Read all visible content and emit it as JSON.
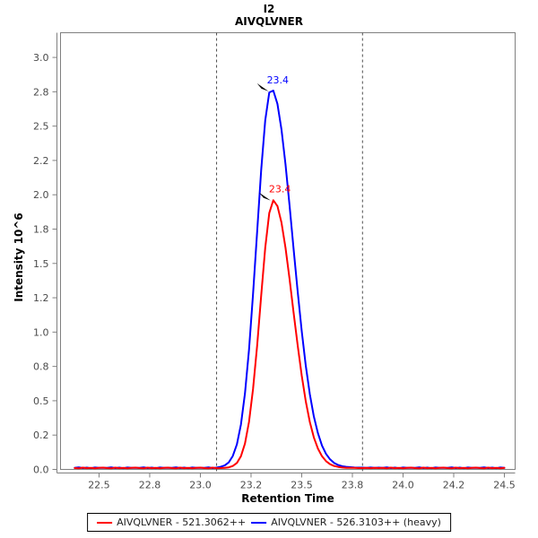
{
  "header": {
    "title": "I2",
    "subtitle": "AIVQLVNER"
  },
  "axes": {
    "y_title": "Intensity 10^6",
    "x_title": "Retention Time"
  },
  "colors": {
    "trace_red": "#ff0000",
    "trace_blue": "#0000ff",
    "frame": "#808080",
    "boundary": "#4d4d4d",
    "tick_text": "#4a4a4a"
  },
  "legend": {
    "items": [
      {
        "label": "AIVQLVNER - 521.3062++",
        "color": "#ff0000"
      },
      {
        "label": "AIVQLVNER - 526.3103++ (heavy)",
        "color": "#0000ff"
      }
    ]
  },
  "chart_data": {
    "type": "line",
    "title": "I2",
    "subtitle": "AIVQLVNER",
    "xlabel": "Retention Time",
    "ylabel": "Intensity 10^6",
    "xlim": [
      22.31,
      24.553
    ],
    "ylim": [
      0,
      3.18
    ],
    "grid": false,
    "legend_position": "bottom",
    "x_ticks": {
      "values": [
        22.5,
        22.75,
        23.0,
        23.25,
        23.5,
        23.75,
        24.0,
        24.25,
        24.5
      ],
      "labels": [
        "22.5",
        "22.8",
        "23.0",
        "23.2",
        "23.5",
        "23.8",
        "24.0",
        "24.2",
        "24.5"
      ]
    },
    "y_ticks": {
      "values": [
        0,
        0.25,
        0.5,
        0.75,
        1.0,
        1.25,
        1.5,
        1.75,
        2.0,
        2.25,
        2.5,
        2.75,
        3.0
      ],
      "labels": [
        "0.0",
        "0.2",
        "0.5",
        "0.8",
        "1.0",
        "1.2",
        "1.5",
        "1.8",
        "2.0",
        "2.2",
        "2.5",
        "2.8",
        "3.0"
      ]
    },
    "integration_boundaries": [
      23.08,
      23.8
    ],
    "x": [
      22.38,
      22.4,
      22.42,
      22.44,
      22.46,
      22.48,
      22.5,
      22.52,
      22.54,
      22.56,
      22.58,
      22.6,
      22.62,
      22.64,
      22.66,
      22.68,
      22.7,
      22.72,
      22.74,
      22.76,
      22.78,
      22.8,
      22.82,
      22.84,
      22.86,
      22.88,
      22.9,
      22.92,
      22.94,
      22.96,
      22.98,
      23.0,
      23.02,
      23.04,
      23.06,
      23.08,
      23.1,
      23.12,
      23.14,
      23.16,
      23.18,
      23.2,
      23.22,
      23.24,
      23.26,
      23.28,
      23.3,
      23.32,
      23.34,
      23.36,
      23.38,
      23.4,
      23.42,
      23.44,
      23.46,
      23.48,
      23.5,
      23.52,
      23.54,
      23.56,
      23.58,
      23.6,
      23.62,
      23.64,
      23.66,
      23.68,
      23.7,
      23.72,
      23.74,
      23.76,
      23.78,
      23.8,
      23.82,
      23.84,
      23.86,
      23.88,
      23.9,
      23.92,
      23.94,
      23.96,
      23.98,
      24.0,
      24.02,
      24.04,
      24.06,
      24.08,
      24.1,
      24.12,
      24.14,
      24.16,
      24.18,
      24.2,
      24.22,
      24.24,
      24.26,
      24.28,
      24.3,
      24.32,
      24.34,
      24.36,
      24.38,
      24.4,
      24.42,
      24.44,
      24.46,
      24.48,
      24.5
    ],
    "series": [
      {
        "name": "AIVQLVNER - 521.3062++",
        "id": "light",
        "color": "#ff0000",
        "peak": {
          "rt": 23.36,
          "intensity": 1.965,
          "label": "23.4"
        },
        "values": [
          0.01,
          0.008,
          0.013,
          0.009,
          0.012,
          0.008,
          0.011,
          0.013,
          0.01,
          0.008,
          0.013,
          0.009,
          0.012,
          0.008,
          0.011,
          0.013,
          0.01,
          0.008,
          0.013,
          0.009,
          0.012,
          0.008,
          0.011,
          0.013,
          0.01,
          0.008,
          0.013,
          0.009,
          0.012,
          0.008,
          0.011,
          0.013,
          0.01,
          0.008,
          0.013,
          0.009,
          0.01,
          0.011,
          0.015,
          0.025,
          0.047,
          0.096,
          0.188,
          0.346,
          0.585,
          0.903,
          1.267,
          1.614,
          1.867,
          1.96,
          1.918,
          1.798,
          1.614,
          1.388,
          1.143,
          0.903,
          0.683,
          0.496,
          0.346,
          0.233,
          0.151,
          0.096,
          0.06,
          0.038,
          0.025,
          0.018,
          0.014,
          0.012,
          0.011,
          0.011,
          0.01,
          0.01,
          0.012,
          0.009,
          0.012,
          0.01,
          0.011,
          0.008,
          0.013,
          0.009,
          0.012,
          0.008,
          0.011,
          0.013,
          0.01,
          0.008,
          0.013,
          0.009,
          0.012,
          0.008,
          0.011,
          0.013,
          0.01,
          0.008,
          0.013,
          0.009,
          0.012,
          0.008,
          0.011,
          0.013,
          0.01,
          0.008,
          0.013,
          0.009,
          0.012,
          0.008,
          0.011
        ]
      },
      {
        "name": "AIVQLVNER - 526.3103++ (heavy)",
        "id": "heavy",
        "color": "#0000ff",
        "peak": {
          "rt": 23.35,
          "intensity": 2.76,
          "label": "23.4"
        },
        "values": [
          0.012,
          0.015,
          0.01,
          0.013,
          0.009,
          0.014,
          0.011,
          0.012,
          0.012,
          0.015,
          0.01,
          0.013,
          0.009,
          0.014,
          0.011,
          0.012,
          0.012,
          0.015,
          0.01,
          0.013,
          0.009,
          0.014,
          0.011,
          0.012,
          0.012,
          0.015,
          0.01,
          0.013,
          0.009,
          0.014,
          0.011,
          0.012,
          0.012,
          0.015,
          0.01,
          0.013,
          0.019,
          0.029,
          0.051,
          0.097,
          0.182,
          0.327,
          0.553,
          0.871,
          1.276,
          1.733,
          2.181,
          2.542,
          2.745,
          2.759,
          2.662,
          2.476,
          2.222,
          1.924,
          1.607,
          1.295,
          1.007,
          0.756,
          0.549,
          0.386,
          0.263,
          0.174,
          0.113,
          0.073,
          0.047,
          0.032,
          0.023,
          0.019,
          0.016,
          0.014,
          0.013,
          0.013,
          0.012,
          0.014,
          0.011,
          0.013,
          0.012,
          0.015,
          0.01,
          0.013,
          0.009,
          0.014,
          0.011,
          0.012,
          0.012,
          0.015,
          0.01,
          0.013,
          0.009,
          0.014,
          0.011,
          0.012,
          0.012,
          0.015,
          0.01,
          0.013,
          0.009,
          0.014,
          0.011,
          0.012,
          0.012,
          0.015,
          0.01,
          0.013,
          0.009,
          0.014,
          0.011
        ]
      }
    ]
  }
}
